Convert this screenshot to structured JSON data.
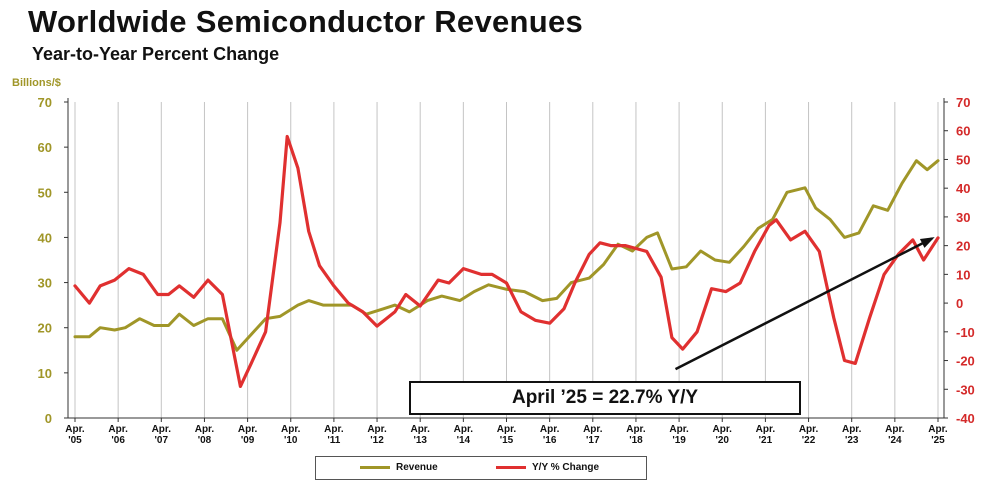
{
  "title": "Worldwide Semiconductor Revenues",
  "subtitle": "Year-to-Year Percent Change",
  "y_unit_label": "Billions/$",
  "annotation": "April ’25 = 22.7% Y/Y",
  "colors": {
    "revenue": "#a09628",
    "yoy": "#e03030",
    "trend": "#111111"
  },
  "chart_data": {
    "type": "line",
    "title": "Worldwide Semiconductor Revenues",
    "subtitle": "Year-to-Year Percent Change",
    "ylabel_left": "Billions/$",
    "ylim_left": [
      0,
      70
    ],
    "yticks_left": [
      "0",
      "10",
      "20",
      "30",
      "40",
      "50",
      "60",
      "70"
    ],
    "ylim_right": [
      -40,
      70
    ],
    "yticks_right": [
      "-40",
      "-30",
      "-20",
      "-10",
      "0",
      "10",
      "20",
      "30",
      "40",
      "50",
      "60",
      "70"
    ],
    "x_tick_labels": [
      [
        "Apr.",
        "'05"
      ],
      [
        "Apr.",
        "'06"
      ],
      [
        "Apr.",
        "'07"
      ],
      [
        "Apr.",
        "'08"
      ],
      [
        "Apr.",
        "'09"
      ],
      [
        "Apr.",
        "'10"
      ],
      [
        "Apr.",
        "'11"
      ],
      [
        "Apr.",
        "'12"
      ],
      [
        "Apr.",
        "'13"
      ],
      [
        "Apr.",
        "'14"
      ],
      [
        "Apr.",
        "'15"
      ],
      [
        "Apr.",
        "'16"
      ],
      [
        "Apr.",
        "'17"
      ],
      [
        "Apr.",
        "'18"
      ],
      [
        "Apr.",
        "'19"
      ],
      [
        "Apr.",
        "'20"
      ],
      [
        "Apr.",
        "'21"
      ],
      [
        "Apr.",
        "'22"
      ],
      [
        "Apr.",
        "'23"
      ],
      [
        "Apr.",
        "'24"
      ],
      [
        "Apr.",
        "'25"
      ]
    ],
    "legend_position": "bottom",
    "grid": "vertical",
    "series": [
      {
        "name": "Revenue",
        "axis": "left",
        "points": [
          [
            "2005-04",
            18
          ],
          [
            "2005-08",
            18
          ],
          [
            "2005-11",
            20
          ],
          [
            "2006-03",
            19.5
          ],
          [
            "2006-06",
            20
          ],
          [
            "2006-10",
            22
          ],
          [
            "2007-02",
            20.5
          ],
          [
            "2007-06",
            20.5
          ],
          [
            "2007-09",
            23
          ],
          [
            "2008-01",
            20.5
          ],
          [
            "2008-05",
            22
          ],
          [
            "2008-09",
            22
          ],
          [
            "2009-01",
            15
          ],
          [
            "2009-05",
            18.5
          ],
          [
            "2009-09",
            22
          ],
          [
            "2010-01",
            22.5
          ],
          [
            "2010-06",
            25
          ],
          [
            "2010-09",
            26
          ],
          [
            "2011-01",
            25
          ],
          [
            "2011-05",
            25
          ],
          [
            "2011-09",
            25
          ],
          [
            "2012-01",
            23
          ],
          [
            "2012-05",
            24
          ],
          [
            "2012-09",
            25
          ],
          [
            "2013-01",
            23.5
          ],
          [
            "2013-06",
            26
          ],
          [
            "2013-10",
            27
          ],
          [
            "2014-03",
            26
          ],
          [
            "2014-07",
            28
          ],
          [
            "2014-11",
            29.5
          ],
          [
            "2015-04",
            28.5
          ],
          [
            "2015-09",
            28
          ],
          [
            "2016-02",
            26
          ],
          [
            "2016-06",
            26.5
          ],
          [
            "2016-10",
            30
          ],
          [
            "2017-03",
            31
          ],
          [
            "2017-07",
            34
          ],
          [
            "2017-11",
            38.5
          ],
          [
            "2018-03",
            37
          ],
          [
            "2018-07",
            40
          ],
          [
            "2018-10",
            41
          ],
          [
            "2019-02",
            33
          ],
          [
            "2019-06",
            33.5
          ],
          [
            "2019-10",
            37
          ],
          [
            "2020-02",
            35
          ],
          [
            "2020-06",
            34.5
          ],
          [
            "2020-10",
            38
          ],
          [
            "2021-02",
            42
          ],
          [
            "2021-06",
            44
          ],
          [
            "2021-10",
            50
          ],
          [
            "2022-03",
            51
          ],
          [
            "2022-06",
            46.5
          ],
          [
            "2022-10",
            44
          ],
          [
            "2023-02",
            40
          ],
          [
            "2023-06",
            41
          ],
          [
            "2023-10",
            47
          ],
          [
            "2024-02",
            46
          ],
          [
            "2024-06",
            52
          ],
          [
            "2024-10",
            57
          ],
          [
            "2025-01",
            55
          ],
          [
            "2025-04",
            57
          ]
        ]
      },
      {
        "name": "Y/Y % Change",
        "axis": "right",
        "points": [
          [
            "2005-04",
            6
          ],
          [
            "2005-08",
            0
          ],
          [
            "2005-11",
            6
          ],
          [
            "2006-03",
            8
          ],
          [
            "2006-07",
            12
          ],
          [
            "2006-11",
            10
          ],
          [
            "2007-03",
            3
          ],
          [
            "2007-06",
            3
          ],
          [
            "2007-09",
            6
          ],
          [
            "2008-01",
            2
          ],
          [
            "2008-05",
            8
          ],
          [
            "2008-09",
            3
          ],
          [
            "2009-02",
            -29
          ],
          [
            "2009-05",
            -21
          ],
          [
            "2009-09",
            -10
          ],
          [
            "2010-01",
            28
          ],
          [
            "2010-03",
            58
          ],
          [
            "2010-06",
            47
          ],
          [
            "2010-09",
            25
          ],
          [
            "2010-12",
            13
          ],
          [
            "2011-04",
            6
          ],
          [
            "2011-08",
            0
          ],
          [
            "2011-12",
            -3
          ],
          [
            "2012-04",
            -8
          ],
          [
            "2012-09",
            -3
          ],
          [
            "2012-12",
            3
          ],
          [
            "2013-04",
            -1
          ],
          [
            "2013-09",
            8
          ],
          [
            "2013-12",
            7
          ],
          [
            "2014-04",
            12
          ],
          [
            "2014-09",
            10
          ],
          [
            "2014-12",
            10
          ],
          [
            "2015-04",
            7
          ],
          [
            "2015-08",
            -3
          ],
          [
            "2015-12",
            -6
          ],
          [
            "2016-04",
            -7
          ],
          [
            "2016-08",
            -2
          ],
          [
            "2016-11",
            7
          ],
          [
            "2017-03",
            17
          ],
          [
            "2017-06",
            21
          ],
          [
            "2017-09",
            20
          ],
          [
            "2018-01",
            20
          ],
          [
            "2018-04",
            19
          ],
          [
            "2018-07",
            18
          ],
          [
            "2018-11",
            9
          ],
          [
            "2019-02",
            -12
          ],
          [
            "2019-05",
            -16
          ],
          [
            "2019-09",
            -10
          ],
          [
            "2020-01",
            5
          ],
          [
            "2020-05",
            4
          ],
          [
            "2020-09",
            7
          ],
          [
            "2021-01",
            18
          ],
          [
            "2021-05",
            27
          ],
          [
            "2021-07",
            29
          ],
          [
            "2021-11",
            22
          ],
          [
            "2022-03",
            25
          ],
          [
            "2022-07",
            18
          ],
          [
            "2022-11",
            -5
          ],
          [
            "2023-02",
            -20
          ],
          [
            "2023-05",
            -21
          ],
          [
            "2023-09",
            -5
          ],
          [
            "2024-01",
            10
          ],
          [
            "2024-05",
            17
          ],
          [
            "2024-09",
            22
          ],
          [
            "2024-12",
            15
          ],
          [
            "2025-04",
            22.7
          ]
        ]
      }
    ],
    "trend_line": {
      "axis": "right",
      "from": [
        "2019-03",
        -23
      ],
      "to": [
        "2025-04",
        22.5
      ]
    },
    "annotation": "April ’25 = 22.7% Y/Y"
  }
}
